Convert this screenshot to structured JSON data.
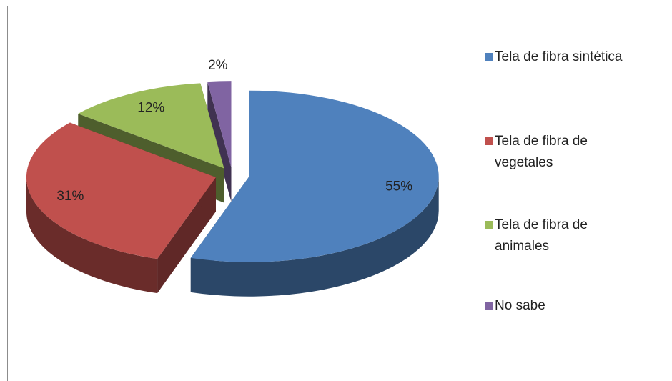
{
  "chart_data": {
    "type": "pie",
    "categories": [
      "Tela de fibra sintética",
      "Tela de fibra de vegetales",
      "Tela de fibra de animales",
      "No sabe"
    ],
    "values": [
      55,
      31,
      12,
      2
    ],
    "value_labels": [
      "55%",
      "31%",
      "12%",
      "2%"
    ],
    "colors": [
      "#4f81bd",
      "#c0504d",
      "#9bbb59",
      "#8064a2"
    ],
    "legend": "right"
  }
}
